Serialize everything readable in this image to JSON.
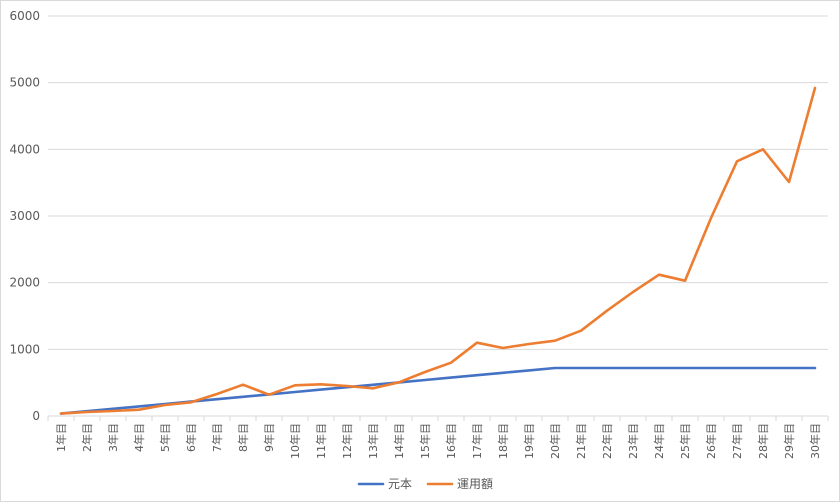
{
  "chart_data": {
    "type": "line",
    "categories": [
      "1年目",
      "2年目",
      "3年目",
      "4年目",
      "5年目",
      "6年目",
      "7年目",
      "8年目",
      "9年目",
      "10年目",
      "11年目",
      "12年目",
      "13年目",
      "14年目",
      "15年目",
      "16年目",
      "17年目",
      "18年目",
      "19年目",
      "20年目",
      "21年目",
      "22年目",
      "23年目",
      "24年目",
      "25年目",
      "26年目",
      "27年目",
      "28年目",
      "29年目",
      "30年目"
    ],
    "series": [
      {
        "name": "元本",
        "color": "#4472C4",
        "values": [
          36,
          72,
          108,
          144,
          180,
          216,
          252,
          288,
          324,
          360,
          396,
          432,
          468,
          504,
          540,
          576,
          612,
          648,
          684,
          720,
          720,
          720,
          720,
          720,
          720,
          720,
          720,
          720,
          720,
          720
        ]
      },
      {
        "name": "運用額",
        "color": "#ED7D31",
        "values": [
          36,
          60,
          75,
          95,
          165,
          205,
          330,
          470,
          320,
          460,
          475,
          450,
          415,
          505,
          660,
          800,
          1100,
          1020,
          1080,
          1130,
          1280,
          1580,
          1860,
          2120,
          2030,
          2970,
          3820,
          4000,
          3510,
          4920
        ]
      }
    ],
    "ylim": [
      0,
      6000
    ],
    "yticks": [
      0,
      1000,
      2000,
      3000,
      4000,
      5000,
      6000
    ],
    "ytick_labels": [
      "0",
      "1000",
      "2000",
      "3000",
      "4000",
      "5000",
      "6000"
    ],
    "grid": true,
    "legend_position": "bottom",
    "gridline_color": "#d9d9d9",
    "axis_text_color": "#595959"
  }
}
